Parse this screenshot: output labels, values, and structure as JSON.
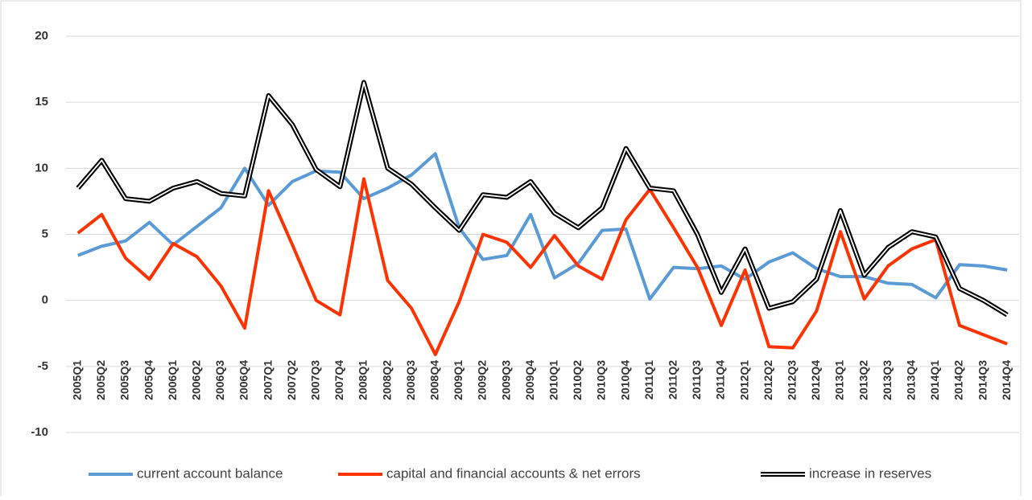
{
  "chart_data": {
    "type": "line",
    "categories": [
      "2005Q1",
      "2005Q2",
      "2005Q3",
      "2005Q4",
      "2006Q1",
      "2006Q2",
      "2006Q3",
      "2006Q4",
      "2007Q1",
      "2007Q2",
      "2007Q3",
      "2007Q4",
      "2008Q1",
      "2008Q2",
      "2008Q3",
      "2008Q4",
      "2009Q1",
      "2009Q2",
      "2009Q3",
      "2009Q4",
      "2010Q1",
      "2010Q2",
      "2010Q3",
      "2010Q4",
      "2011Q1",
      "2011Q2",
      "2011Q3",
      "2011Q4",
      "2012Q1",
      "2012Q2",
      "2012Q3",
      "2012Q4",
      "2013Q1",
      "2013Q2",
      "2013Q3",
      "2013Q4",
      "2014Q1",
      "2014Q2",
      "2014Q3",
      "2014Q4"
    ],
    "series": [
      {
        "name": "current account balance",
        "color": "#5b9bd5",
        "values": [
          3.4,
          4.1,
          4.5,
          5.9,
          4.2,
          5.6,
          7.0,
          10.0,
          7.2,
          9.0,
          9.8,
          9.7,
          7.7,
          8.5,
          9.5,
          11.1,
          5.5,
          3.1,
          3.4,
          6.5,
          1.7,
          2.8,
          5.3,
          5.4,
          0.1,
          2.5,
          2.4,
          2.6,
          1.6,
          2.9,
          3.6,
          2.4,
          1.8,
          1.8,
          1.3,
          1.2,
          0.2,
          2.7,
          2.6,
          2.3
        ]
      },
      {
        "name": "capital and financial accounts & net errors",
        "color": "#ff3300",
        "values": [
          5.1,
          6.5,
          3.2,
          1.6,
          4.3,
          3.3,
          1.1,
          -2.1,
          8.3,
          4.2,
          0.0,
          -1.1,
          9.2,
          1.5,
          -0.6,
          -4.1,
          -0.1,
          5.0,
          4.4,
          2.5,
          4.9,
          2.6,
          1.6,
          6.1,
          8.4,
          5.5,
          2.5,
          -1.9,
          2.3,
          -3.5,
          -3.6,
          -0.8,
          5.2,
          0.1,
          2.6,
          3.9,
          4.6,
          -1.9,
          -2.6,
          -3.3
        ]
      },
      {
        "name": "increase in reserves",
        "color": "#000000",
        "line_style": "double",
        "values": [
          8.5,
          10.6,
          7.7,
          7.5,
          8.5,
          9.0,
          8.1,
          7.9,
          15.5,
          13.3,
          9.9,
          8.6,
          16.5,
          10.0,
          8.8,
          7.0,
          5.3,
          8.0,
          7.8,
          9.0,
          6.6,
          5.5,
          7.0,
          11.5,
          8.5,
          8.3,
          5.0,
          0.6,
          3.9,
          -0.6,
          -0.1,
          1.6,
          6.8,
          1.9,
          4.0,
          5.2,
          4.8,
          0.9,
          0.0,
          -1.1
        ]
      }
    ],
    "ylim": [
      -10,
      20
    ],
    "yticks": [
      -10,
      -5,
      0,
      5,
      10,
      15,
      20
    ],
    "grid": true,
    "legend": "bottom"
  }
}
